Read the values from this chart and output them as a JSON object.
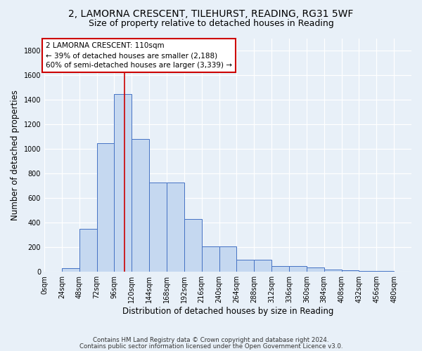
{
  "title1": "2, LAMORNA CRESCENT, TILEHURST, READING, RG31 5WF",
  "title2": "Size of property relative to detached houses in Reading",
  "xlabel": "Distribution of detached houses by size in Reading",
  "ylabel": "Number of detached properties",
  "bar_values": [
    0,
    30,
    350,
    1050,
    1450,
    1080,
    730,
    730,
    430,
    210,
    210,
    100,
    100,
    50,
    50,
    35,
    20,
    15,
    10,
    5,
    0
  ],
  "bin_edges": [
    0,
    24,
    48,
    72,
    96,
    120,
    144,
    168,
    192,
    216,
    240,
    264,
    288,
    312,
    336,
    360,
    384,
    408,
    432,
    456,
    480
  ],
  "tick_labels": [
    "0sqm",
    "24sqm",
    "48sqm",
    "72sqm",
    "96sqm",
    "120sqm",
    "144sqm",
    "168sqm",
    "192sqm",
    "216sqm",
    "240sqm",
    "264sqm",
    "288sqm",
    "312sqm",
    "336sqm",
    "360sqm",
    "384sqm",
    "408sqm",
    "432sqm",
    "456sqm",
    "480sqm"
  ],
  "bar_color": "#c5d8f0",
  "bar_edge_color": "#4472c4",
  "vline_color": "#cc0000",
  "vline_x": 110,
  "annotation_line1": "2 LAMORNA CRESCENT: 110sqm",
  "annotation_line2": "← 39% of detached houses are smaller (2,188)",
  "annotation_line3": "60% of semi-detached houses are larger (3,339) →",
  "annotation_box_color": "#ffffff",
  "annotation_border_color": "#cc0000",
  "ylim": [
    0,
    1900
  ],
  "yticks": [
    0,
    200,
    400,
    600,
    800,
    1000,
    1200,
    1400,
    1600,
    1800
  ],
  "footer1": "Contains HM Land Registry data © Crown copyright and database right 2024.",
  "footer2": "Contains public sector information licensed under the Open Government Licence v3.0.",
  "bg_color": "#e8f0f8",
  "grid_color": "#ffffff",
  "title1_fontsize": 10,
  "title2_fontsize": 9,
  "tick_fontsize": 7,
  "ylabel_fontsize": 8.5,
  "xlabel_fontsize": 8.5,
  "annotation_fontsize": 7.5,
  "footer_fontsize": 6.2
}
